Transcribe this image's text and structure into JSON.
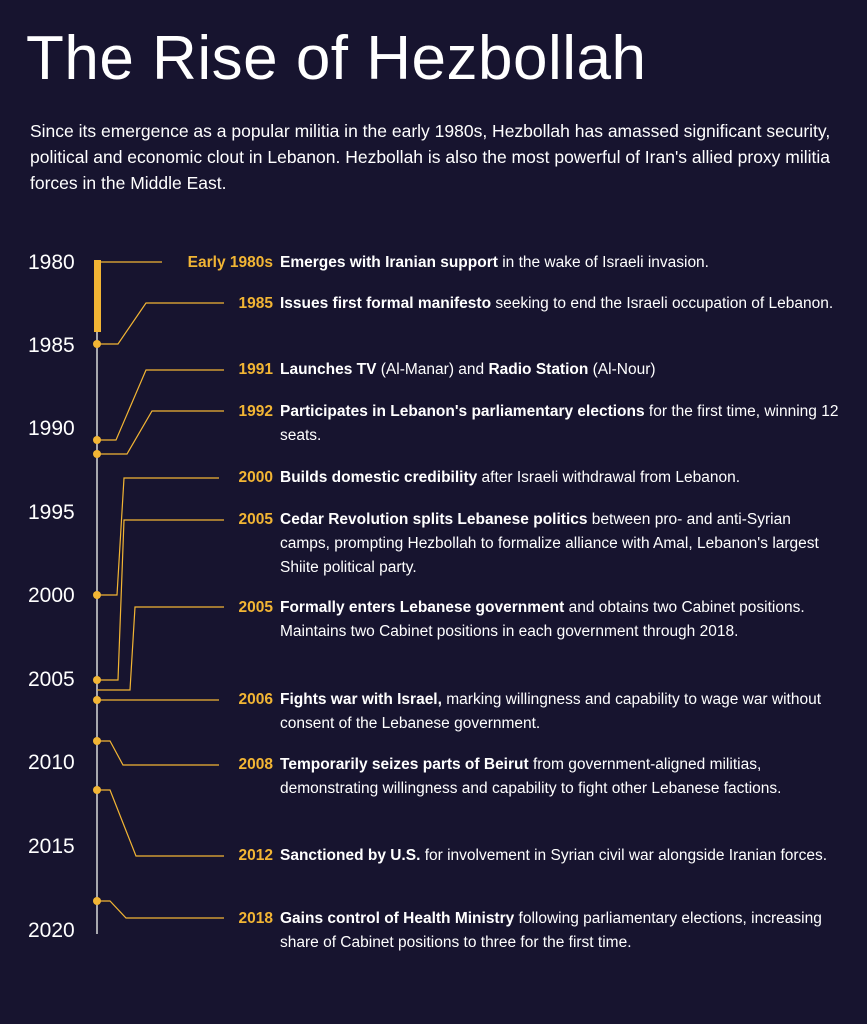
{
  "title": "The Rise of Hezbollah",
  "intro": "Since its emergence as a popular militia in the early 1980s, Hezbollah has amassed significant security, political and economic clout in Lebanon. Hezbollah is also the most powerful of Iran's allied proxy militia forces in the Middle East.",
  "colors": {
    "background": "#17142f",
    "accent": "#f2b534",
    "text": "#ffffff",
    "axis": "#d9d9d9"
  },
  "axis_years": [
    "1980",
    "1985",
    "1990",
    "1995",
    "2000",
    "2005",
    "2010",
    "2015",
    "2020"
  ],
  "events": [
    {
      "date": "Early 1980s",
      "bold": "Emerges with Iranian support",
      "rest": " in the wake of Israeli invasion."
    },
    {
      "date": "1985",
      "bold": "Issues first formal manifesto",
      "rest": " seeking to end the Israeli occupation of Lebanon."
    },
    {
      "date": "1991",
      "bold": "Launches TV",
      "rest": " (Al-Manar) and ",
      "bold2": "Radio Station",
      "rest2": " (Al-Nour)"
    },
    {
      "date": "1992",
      "bold": "Participates in Lebanon's parliamentary elections",
      "rest": " for the first time, winning 12 seats."
    },
    {
      "date": "2000",
      "bold": "Builds domestic credibility",
      "rest": " after Israeli withdrawal from Lebanon."
    },
    {
      "date": "2005",
      "bold": "Cedar Revolution splits Lebanese politics",
      "rest": " between pro- and anti-Syrian camps, prompting Hezbollah to formalize alliance with Amal, Lebanon's largest Shiite political party."
    },
    {
      "date": "2005",
      "bold": "Formally enters Lebanese government",
      "rest": " and obtains two Cabinet positions. Maintains two Cabinet positions in each government through 2018."
    },
    {
      "date": "2006",
      "bold": "Fights war with Israel,",
      "rest": " marking willingness and capability to wage war without consent of the Lebanese government."
    },
    {
      "date": "2008",
      "bold": "Temporarily seizes parts of Beirut",
      "rest": " from government-aligned militias, demonstrating willingness and capability to fight other Lebanese factions."
    },
    {
      "date": "2012",
      "bold": "Sanctioned by U.S.",
      "rest": " for involvement in Syrian civil war alongside Iranian forces."
    },
    {
      "date": "2018",
      "bold": "Gains control of Health Ministry",
      "rest": " following parliamentary elections, increasing share of Cabinet positions to three for the first time."
    }
  ]
}
